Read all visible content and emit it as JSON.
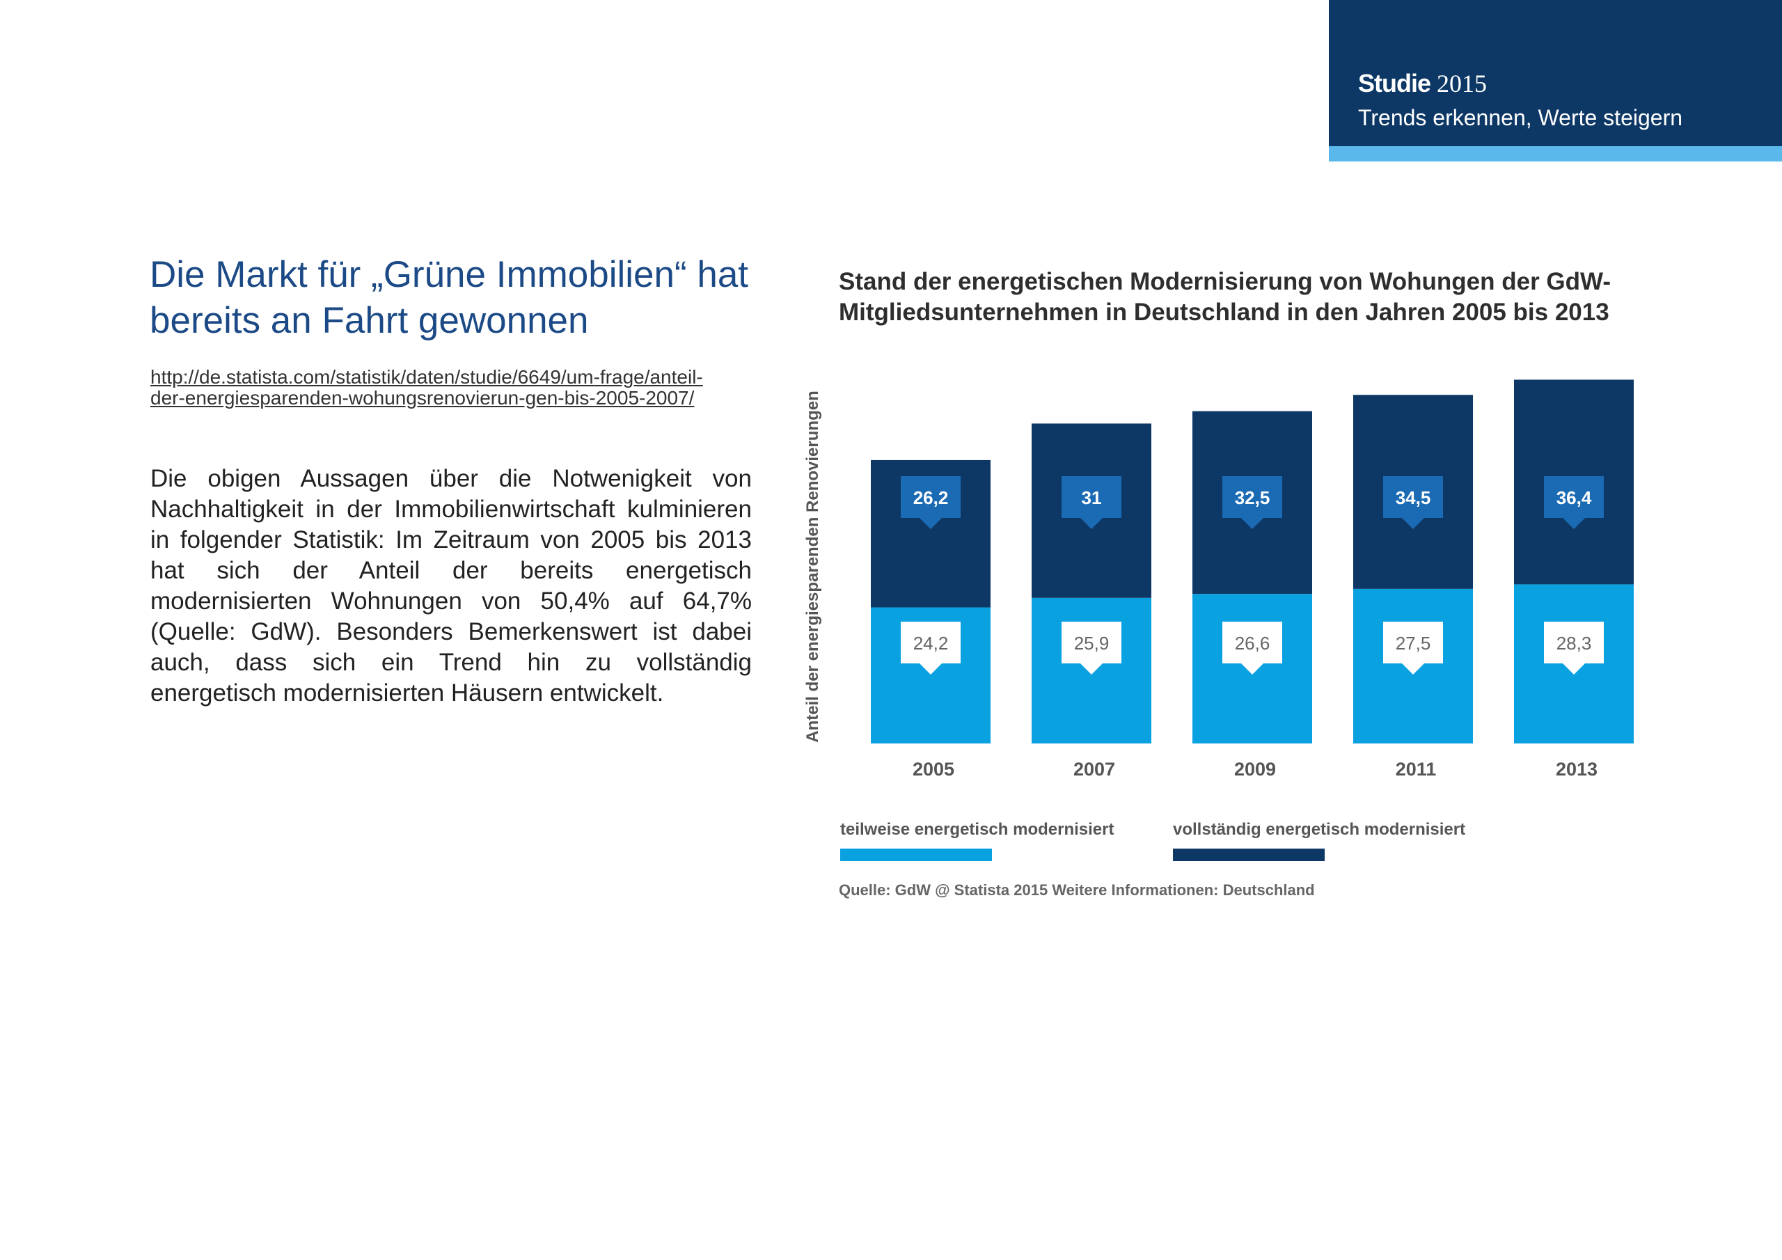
{
  "brand": {
    "title_bold": "Studie",
    "title_year": "2015",
    "subtitle": "Trends erkennen, Werte steigern"
  },
  "headline": "Die Markt für „Grüne Immobilien“ hat bereits an Fahrt gewonnen",
  "source_link": "http://de.statista.com/statistik/daten/studie/6649/um-frage/anteil-der-energiesparenden-wohungsrenovierun-gen-bis-2005-2007/",
  "body_text": "Die obigen Aussagen über die Notwenigkeit von Nachhaltigkeit in der Immobilienwirtschaft kulminieren in folgender Statistik: Im Zeitraum von 2005 bis 2013 hat sich der Anteil der bereits energetisch modernisierten Wohnungen von 50,4% auf 64,7% (Quelle: GdW). Besonders Bemerkenswert ist dabei auch, dass sich ein Trend hin zu vollständig energetisch modernisierten Häusern entwickelt.",
  "colors": {
    "partial": "#0aa1e1",
    "full": "#0d3866",
    "partial_label_bg": "#ffffff",
    "full_label_bg": "#1b6bb4"
  },
  "chart_data": {
    "type": "bar",
    "stacked": true,
    "title": "Stand der energetischen Modernisierung von Wohungen der GdW-Mitgliedsunternehmen in Deutschland in den Jahren 2005 bis 2013",
    "xlabel": "",
    "ylabel": "Anteil der energiesparenden Renovierungen",
    "categories": [
      "2005",
      "2007",
      "2009",
      "2011",
      "2013"
    ],
    "series": [
      {
        "name": "teilweise energetisch modernisiert",
        "values": [
          24.2,
          25.9,
          26.6,
          27.5,
          28.3
        ],
        "labels": [
          "24,2",
          "25,9",
          "26,6",
          "27,5",
          "28,3"
        ]
      },
      {
        "name": "vollständig energetisch modernisiert",
        "values": [
          26.2,
          31,
          32.5,
          34.5,
          36.4
        ],
        "labels": [
          "26,2",
          "31",
          "32,5",
          "34,5",
          "36,4"
        ]
      }
    ],
    "ylim": [
      0,
      65
    ],
    "grid": false,
    "legend": "bottom-left",
    "source": "Quelle: GdW @ Statista 2015 Weitere Informationen: Deutschland"
  }
}
